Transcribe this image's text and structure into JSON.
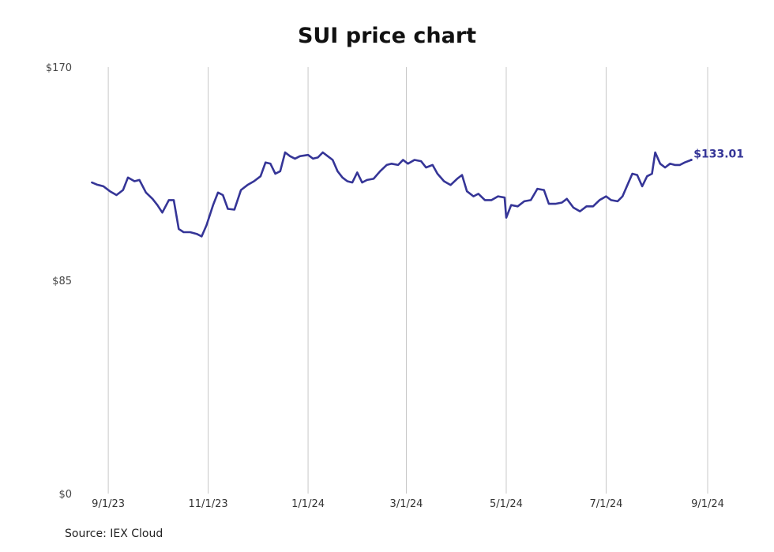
{
  "chart_data": {
    "type": "line",
    "title": "SUI price chart",
    "xlabel": "",
    "ylabel": "",
    "ylim": [
      0,
      170
    ],
    "xlim": [
      "2023-08-17",
      "2024-09-01"
    ],
    "y_ticks": [
      {
        "value": 0,
        "label": "$0"
      },
      {
        "value": 85,
        "label": "$85"
      },
      {
        "value": 170,
        "label": "$170"
      }
    ],
    "x_ticks": [
      {
        "date": "2023-09-01",
        "label": "9/1/23"
      },
      {
        "date": "2023-11-01",
        "label": "11/1/23"
      },
      {
        "date": "2024-01-01",
        "label": "1/1/24"
      },
      {
        "date": "2024-03-01",
        "label": "3/1/24"
      },
      {
        "date": "2024-05-01",
        "label": "5/1/24"
      },
      {
        "date": "2024-07-01",
        "label": "7/1/24"
      },
      {
        "date": "2024-09-01",
        "label": "9/1/24"
      }
    ],
    "grid": "vertical",
    "series": [
      {
        "color": "#353597",
        "end_label": "$133.01",
        "points": [
          [
            "2023-08-22",
            124.0
          ],
          [
            "2023-08-25",
            123.2
          ],
          [
            "2023-08-29",
            122.5
          ],
          [
            "2023-09-02",
            120.5
          ],
          [
            "2023-09-06",
            119.0
          ],
          [
            "2023-09-10",
            121.0
          ],
          [
            "2023-09-13",
            126.0
          ],
          [
            "2023-09-17",
            124.5
          ],
          [
            "2023-09-20",
            125.0
          ],
          [
            "2023-09-24",
            120.0
          ],
          [
            "2023-09-28",
            117.5
          ],
          [
            "2023-10-01",
            115.0
          ],
          [
            "2023-10-04",
            112.0
          ],
          [
            "2023-10-08",
            117.0
          ],
          [
            "2023-10-11",
            117.0
          ],
          [
            "2023-10-14",
            105.5
          ],
          [
            "2023-10-17",
            104.2
          ],
          [
            "2023-10-21",
            104.2
          ],
          [
            "2023-10-25",
            103.5
          ],
          [
            "2023-10-28",
            102.5
          ],
          [
            "2023-10-31",
            107.0
          ],
          [
            "2023-11-04",
            115.0
          ],
          [
            "2023-11-07",
            120.0
          ],
          [
            "2023-11-10",
            119.0
          ],
          [
            "2023-11-13",
            113.5
          ],
          [
            "2023-11-17",
            113.2
          ],
          [
            "2023-11-21",
            121.0
          ],
          [
            "2023-11-25",
            123.0
          ],
          [
            "2023-11-29",
            124.5
          ],
          [
            "2023-12-03",
            126.5
          ],
          [
            "2023-12-06",
            132.0
          ],
          [
            "2023-12-09",
            131.5
          ],
          [
            "2023-12-12",
            127.5
          ],
          [
            "2023-12-15",
            128.5
          ],
          [
            "2023-12-18",
            136.0
          ],
          [
            "2023-12-21",
            134.5
          ],
          [
            "2023-12-24",
            133.5
          ],
          [
            "2023-12-27",
            134.5
          ],
          [
            "2024-01-01",
            135.0
          ],
          [
            "2024-01-04",
            133.5
          ],
          [
            "2024-01-07",
            134.0
          ],
          [
            "2024-01-10",
            136.0
          ],
          [
            "2024-01-13",
            134.5
          ],
          [
            "2024-01-16",
            133.0
          ],
          [
            "2024-01-19",
            128.5
          ],
          [
            "2024-01-22",
            126.0
          ],
          [
            "2024-01-25",
            124.5
          ],
          [
            "2024-01-28",
            124.0
          ],
          [
            "2024-01-31",
            128.0
          ],
          [
            "2024-02-03",
            124.0
          ],
          [
            "2024-02-06",
            125.0
          ],
          [
            "2024-02-10",
            125.5
          ],
          [
            "2024-02-14",
            128.5
          ],
          [
            "2024-02-18",
            131.0
          ],
          [
            "2024-02-21",
            131.5
          ],
          [
            "2024-02-25",
            131.0
          ],
          [
            "2024-02-28",
            133.0
          ],
          [
            "2024-03-02",
            131.5
          ],
          [
            "2024-03-06",
            133.0
          ],
          [
            "2024-03-10",
            132.5
          ],
          [
            "2024-03-13",
            130.0
          ],
          [
            "2024-03-17",
            131.0
          ],
          [
            "2024-03-20",
            127.5
          ],
          [
            "2024-03-24",
            124.5
          ],
          [
            "2024-03-28",
            123.0
          ],
          [
            "2024-04-01",
            125.5
          ],
          [
            "2024-04-04",
            127.0
          ],
          [
            "2024-04-07",
            120.5
          ],
          [
            "2024-04-11",
            118.5
          ],
          [
            "2024-04-14",
            119.5
          ],
          [
            "2024-04-18",
            117.0
          ],
          [
            "2024-04-22",
            117.0
          ],
          [
            "2024-04-26",
            118.5
          ],
          [
            "2024-04-30",
            118.0
          ],
          [
            "2024-05-01",
            110.0
          ],
          [
            "2024-05-04",
            115.0
          ],
          [
            "2024-05-08",
            114.5
          ],
          [
            "2024-05-12",
            116.5
          ],
          [
            "2024-05-16",
            117.0
          ],
          [
            "2024-05-20",
            121.5
          ],
          [
            "2024-05-24",
            121.0
          ],
          [
            "2024-05-27",
            115.5
          ],
          [
            "2024-05-31",
            115.5
          ],
          [
            "2024-06-04",
            116.0
          ],
          [
            "2024-06-07",
            117.5
          ],
          [
            "2024-06-11",
            114.0
          ],
          [
            "2024-06-15",
            112.5
          ],
          [
            "2024-06-19",
            114.5
          ],
          [
            "2024-06-23",
            114.5
          ],
          [
            "2024-06-27",
            117.0
          ],
          [
            "2024-07-01",
            118.5
          ],
          [
            "2024-07-04",
            117.0
          ],
          [
            "2024-07-08",
            116.5
          ],
          [
            "2024-07-11",
            118.5
          ],
          [
            "2024-07-14",
            123.0
          ],
          [
            "2024-07-17",
            127.5
          ],
          [
            "2024-07-20",
            127.0
          ],
          [
            "2024-07-23",
            122.5
          ],
          [
            "2024-07-26",
            126.5
          ],
          [
            "2024-07-29",
            127.5
          ],
          [
            "2024-07-31",
            136.0
          ],
          [
            "2024-08-03",
            131.5
          ],
          [
            "2024-08-06",
            130.0
          ],
          [
            "2024-08-09",
            131.5
          ],
          [
            "2024-08-12",
            131.0
          ],
          [
            "2024-08-15",
            131.0
          ],
          [
            "2024-08-18",
            132.0
          ],
          [
            "2024-08-22",
            133.01
          ]
        ]
      }
    ]
  },
  "source": "Source: IEX Cloud"
}
